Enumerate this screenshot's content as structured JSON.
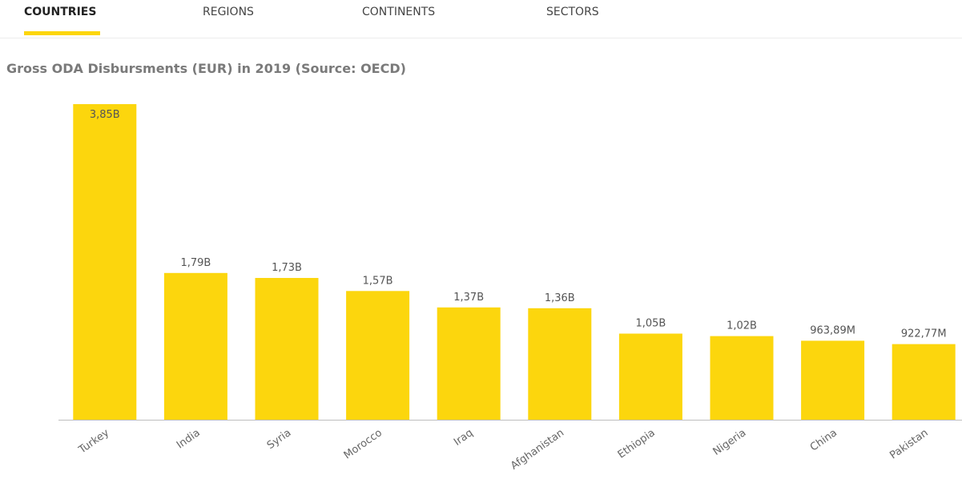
{
  "tabs": [
    {
      "label": "COUNTRIES",
      "active": true
    },
    {
      "label": "REGIONS",
      "active": false
    },
    {
      "label": "CONTINENTS",
      "active": false
    },
    {
      "label": "SECTORS",
      "active": false
    }
  ],
  "accent_color": "#fcd60d",
  "chart_data": {
    "type": "bar",
    "title": "Gross ODA Disbursments (EUR) in 2019 (Source: OECD)",
    "categories": [
      "Turkey",
      "India",
      "Syria",
      "Morocco",
      "Iraq",
      "Afghanistan",
      "Ethiopia",
      "Nigeria",
      "China",
      "Pakistan"
    ],
    "values": [
      3850000000,
      1790000000,
      1730000000,
      1570000000,
      1370000000,
      1360000000,
      1050000000,
      1020000000,
      963890000,
      922770000
    ],
    "value_labels": [
      "3,85B",
      "1,79B",
      "1,73B",
      "1,57B",
      "1,37B",
      "1,36B",
      "1,05B",
      "1,02B",
      "963,89M",
      "922,77M"
    ],
    "ylim": [
      0,
      3850000000
    ],
    "grid": false,
    "bar_color": "#fcd60d"
  }
}
